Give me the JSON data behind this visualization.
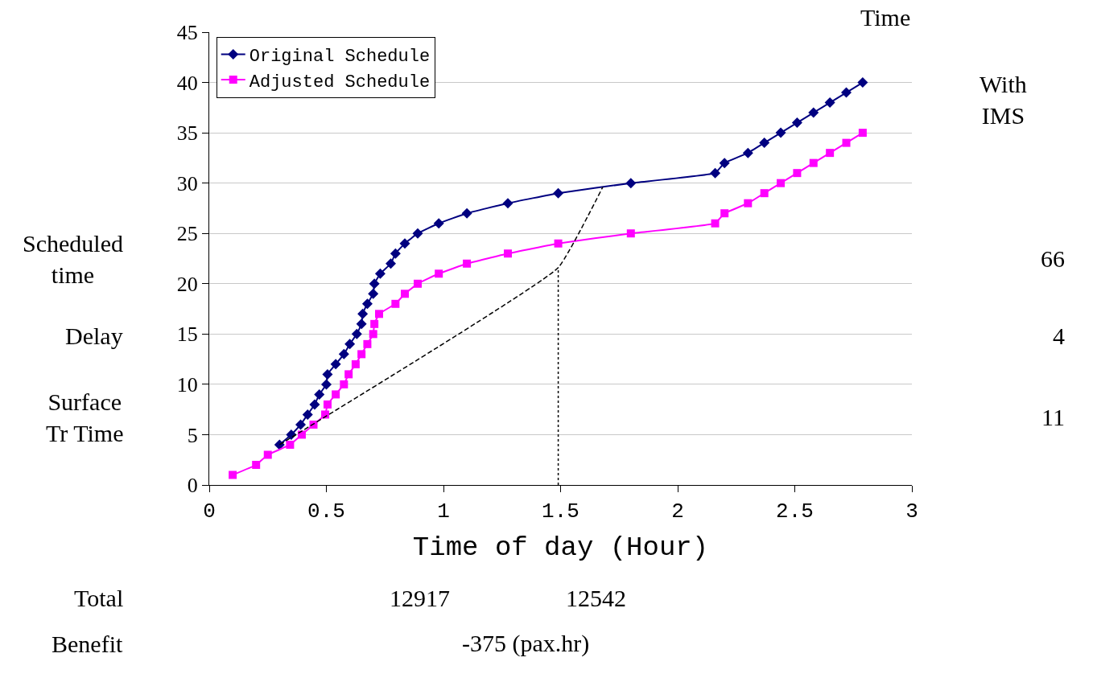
{
  "chart_data": {
    "type": "line",
    "xlabel": "Time of day (Hour)",
    "xlim": [
      0,
      3
    ],
    "xticks": [
      0,
      0.5,
      1,
      1.5,
      2,
      2.5,
      3
    ],
    "ylim": [
      0,
      45
    ],
    "yticks": [
      0,
      5,
      10,
      15,
      20,
      25,
      30,
      35,
      40,
      45
    ],
    "grid": "y",
    "legend": "top left",
    "series": [
      {
        "name": "Original Schedule",
        "color": "#000080",
        "marker": "diamond",
        "x": [
          0.3,
          0.35,
          0.39,
          0.42,
          0.45,
          0.47,
          0.5,
          0.505,
          0.54,
          0.575,
          0.6,
          0.63,
          0.65,
          0.655,
          0.675,
          0.7,
          0.705,
          0.73,
          0.775,
          0.795,
          0.835,
          0.89,
          0.98,
          1.1,
          1.275,
          1.49,
          1.8,
          2.16,
          2.2,
          2.3,
          2.37,
          2.44,
          2.51,
          2.58,
          2.65,
          2.72,
          2.79
        ],
        "values": [
          4,
          5,
          6,
          7,
          8,
          9,
          10,
          11,
          12,
          13,
          14,
          15,
          16,
          17,
          18,
          19,
          20,
          21,
          22,
          23,
          24,
          25,
          26,
          27,
          28,
          29,
          30,
          31,
          32,
          33,
          34,
          35,
          36,
          37,
          38,
          39,
          40
        ]
      },
      {
        "name": "Adjusted Schedule",
        "color": "#ff00ff",
        "marker": "square",
        "x": [
          0.1,
          0.2,
          0.25,
          0.345,
          0.395,
          0.445,
          0.495,
          0.505,
          0.54,
          0.575,
          0.595,
          0.625,
          0.65,
          0.675,
          0.7,
          0.705,
          0.725,
          0.795,
          0.835,
          0.89,
          0.98,
          1.1,
          1.275,
          1.49,
          1.8,
          2.16,
          2.2,
          2.3,
          2.37,
          2.44,
          2.51,
          2.58,
          2.65,
          2.72,
          2.79
        ],
        "values": [
          1,
          2,
          3,
          4,
          5,
          6,
          7,
          8,
          9,
          10,
          11,
          12,
          13,
          14,
          15,
          16,
          17,
          18,
          19,
          20,
          21,
          22,
          23,
          24,
          25,
          26,
          27,
          28,
          29,
          30,
          31,
          32,
          33,
          34,
          35
        ]
      },
      {
        "color": "#000000",
        "marker": "none",
        "line_style": "dashed",
        "x": [
          0.3,
          1.49,
          1.68
        ],
        "values": [
          4,
          21.6,
          29.6
        ]
      },
      {
        "color": "#000000",
        "marker": "none",
        "line_style": "dotted",
        "x": [
          1.49,
          1.49
        ],
        "values": [
          0,
          21.6
        ]
      }
    ],
    "annotations": [
      "Time",
      "With IMS",
      "Scheduled time",
      "66",
      "Delay",
      "4",
      "Surface Tr Time",
      "11",
      "Total",
      "12917",
      "12542",
      "Benefit",
      "-375 (pax.hr)"
    ]
  }
}
